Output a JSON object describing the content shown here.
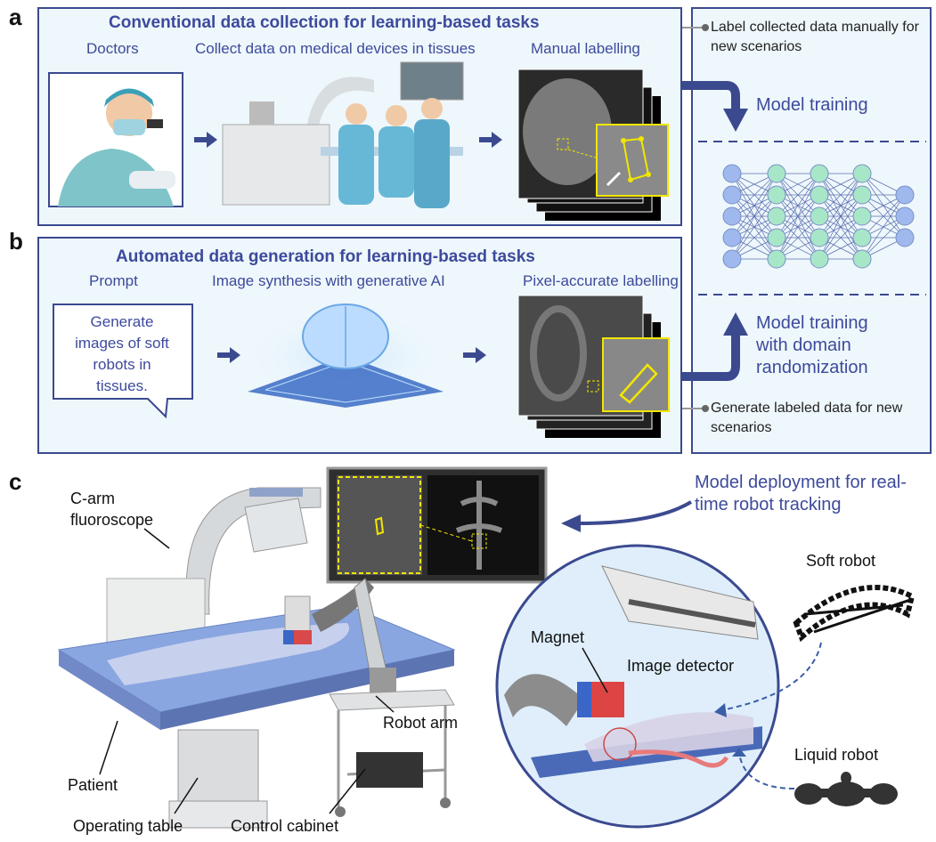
{
  "panels": {
    "a": {
      "letter": "a",
      "title": "Conventional data collection for learning-based tasks",
      "steps": [
        "Doctors",
        "Collect data on medical devices in tissues",
        "Manual labelling"
      ]
    },
    "b": {
      "letter": "b",
      "title": "Automated data generation for learning-based tasks",
      "steps": [
        "Prompt",
        "Image synthesis with generative AI",
        "Pixel-accurate labelling"
      ],
      "prompt_text": "Generate images of soft robots in tissues."
    },
    "c": {
      "letter": "c",
      "deployment": "Model deployment for real-time robot tracking",
      "labels": {
        "c_arm": "C-arm fluoroscope",
        "patient": "Patient",
        "operating_table": "Operating table",
        "control_cabinet": "Control cabinet",
        "robot_arm": "Robot arm",
        "magnet": "Magnet",
        "image_detector": "Image detector",
        "soft_robot": "Soft robot",
        "liquid_robot": "Liquid robot"
      }
    }
  },
  "right_column": {
    "note_top": "Label collected data manually for new scenarios",
    "model_training": "Model training",
    "model_training_dr": "Model training with domain randomization",
    "note_bottom": "Generate labeled data for new scenarios"
  },
  "colors": {
    "accent": "#3d4a9c",
    "panel_bg": "#eef7fb",
    "label_yellow": "#f2e600",
    "node_blue": "#9fb8ee",
    "node_green": "#a8e6c8"
  }
}
